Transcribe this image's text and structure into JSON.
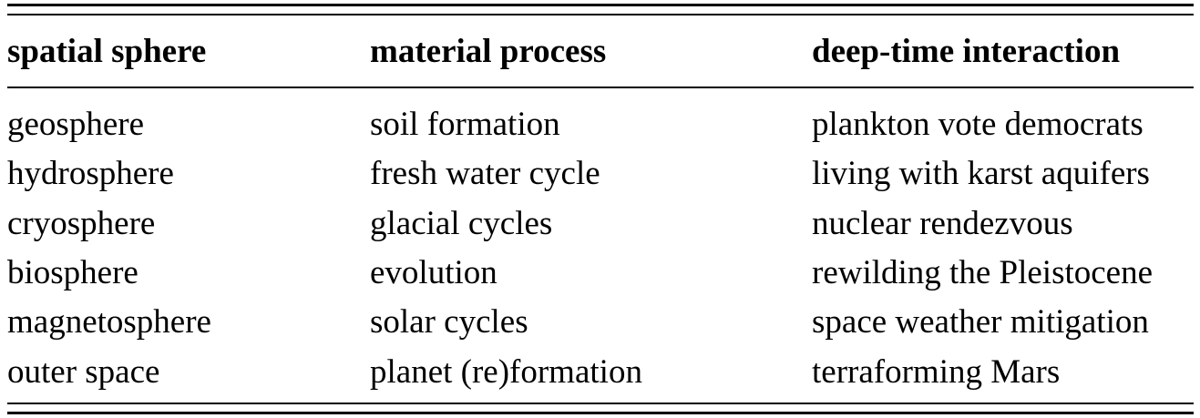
{
  "table": {
    "headers": [
      "spatial sphere",
      "material process",
      "deep-time interaction"
    ],
    "rows": [
      [
        "geosphere",
        "soil formation",
        "plankton vote democrats"
      ],
      [
        "hydrosphere",
        "fresh water cycle",
        "living with karst aquifers"
      ],
      [
        "cryosphere",
        "glacial cycles",
        "nuclear rendezvous"
      ],
      [
        "biosphere",
        "evolution",
        "rewilding the Pleistocene"
      ],
      [
        "magnetosphere",
        "solar cycles",
        "space weather mitigation"
      ],
      [
        "outer space",
        "planet (re)formation",
        "terraforming Mars"
      ]
    ]
  }
}
